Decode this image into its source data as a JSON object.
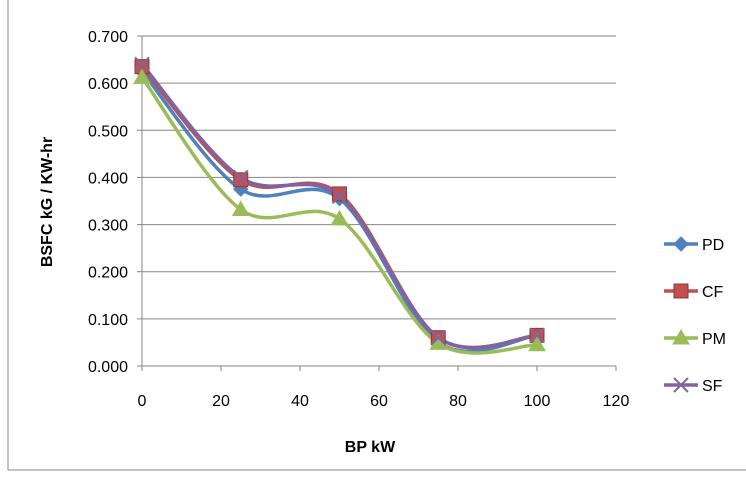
{
  "chart_data": {
    "type": "line",
    "title": "",
    "xlabel": "BP  kW",
    "ylabel": "BSFC  kG / KW-hr",
    "xlim": [
      0,
      120
    ],
    "ylim": [
      0,
      0.7
    ],
    "x_ticks": [
      "0",
      "20",
      "40",
      "60",
      "80",
      "100",
      "120"
    ],
    "y_ticks": [
      "0.000",
      "0.100",
      "0.200",
      "0.300",
      "0.400",
      "0.500",
      "0.600",
      "0.700"
    ],
    "grid": "horizontal",
    "legend_position": "right",
    "smooth": true,
    "x": [
      0,
      25,
      50,
      75,
      100
    ],
    "series": [
      {
        "name": "PD",
        "color": "#4f81bd",
        "marker": "diamond",
        "values": [
          0.625,
          0.375,
          0.355,
          0.05,
          0.065
        ]
      },
      {
        "name": "CF",
        "color": "#c0504d",
        "marker": "square",
        "values": [
          0.635,
          0.395,
          0.365,
          0.06,
          0.065
        ]
      },
      {
        "name": "PM",
        "color": "#9bbb59",
        "marker": "triangle",
        "values": [
          0.612,
          0.332,
          0.312,
          0.048,
          0.045
        ]
      },
      {
        "name": "SF",
        "color": "#8064a2",
        "marker": "x",
        "values": [
          0.64,
          0.4,
          0.36,
          0.06,
          0.065
        ]
      }
    ]
  }
}
